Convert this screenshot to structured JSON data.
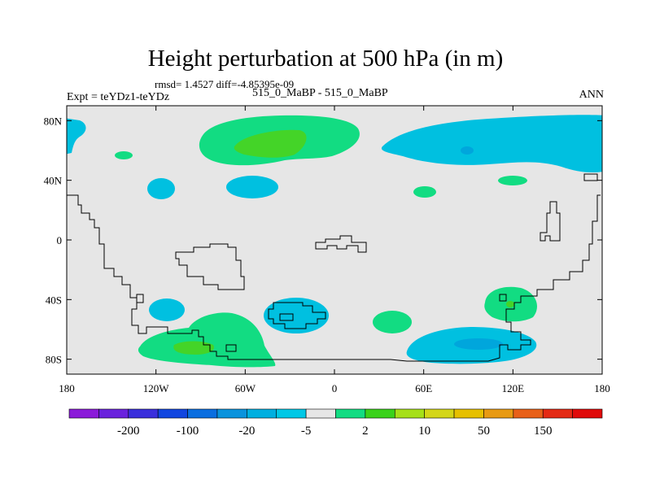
{
  "title": "Height perturbation at 500 hPa (in m)",
  "stats_text": "rmsd= 1.4527 diff=-4.85395e-09",
  "experiment_label": "Expt = teYDz1-teYDz",
  "case_label": "515_0_MaBP - 515_0_MaBP",
  "season": "ANN",
  "map": {
    "lat_ticks": [
      {
        "label": "80N",
        "lat": 80
      },
      {
        "label": "40N",
        "lat": 40
      },
      {
        "label": "0",
        "lat": 0
      },
      {
        "label": "40S",
        "lat": -40
      },
      {
        "label": "80S",
        "lat": -80
      }
    ],
    "lon_ticks": [
      {
        "label": "180",
        "lon": -180
      },
      {
        "label": "120W",
        "lon": -120
      },
      {
        "label": "60W",
        "lon": -60
      },
      {
        "label": "0",
        "lon": 0
      },
      {
        "label": "60E",
        "lon": 60
      },
      {
        "label": "120E",
        "lon": 120
      },
      {
        "label": "180",
        "lon": 180
      }
    ],
    "colors": {
      "background": "#e6e6e6",
      "cyan": "#00c0e0",
      "blue": "#00a6dc",
      "green": "#12dc82",
      "yellowgreen": "#44d428"
    }
  },
  "colorbar": {
    "colors": [
      "#8b1ad9",
      "#6a22dd",
      "#3a2fdc",
      "#1146e0",
      "#0a6ee0",
      "#0a93dd",
      "#00afe0",
      "#00c8e6",
      "#e6e6e6",
      "#12dc82",
      "#3ad21a",
      "#a6e018",
      "#d4d618",
      "#e6c000",
      "#e89a12",
      "#e86018",
      "#e42a14",
      "#e00a0a"
    ],
    "labels": [
      "-200",
      "-100",
      "-20",
      "-5",
      "2",
      "10",
      "50",
      "150"
    ]
  }
}
